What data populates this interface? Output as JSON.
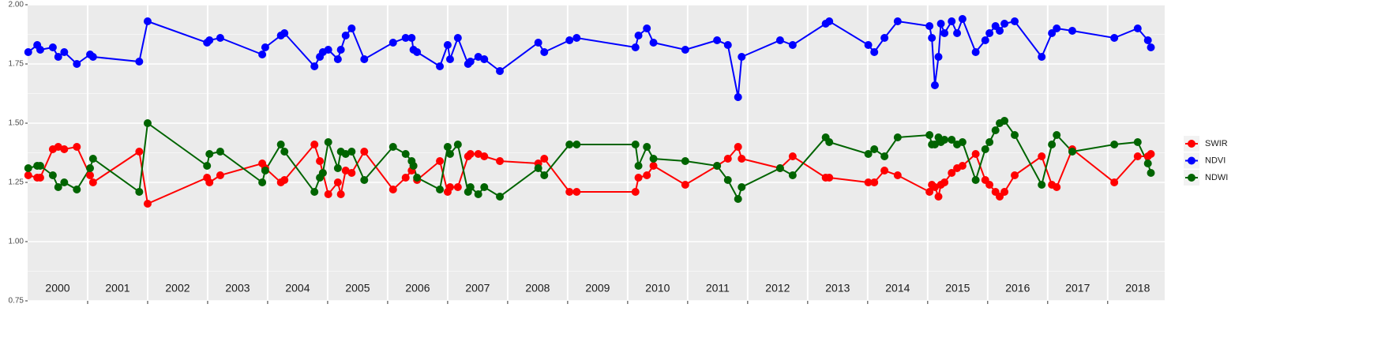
{
  "chart_data": {
    "type": "line",
    "x": [
      2000.01,
      2000.16,
      2000.21,
      2000.42,
      2000.51,
      2000.61,
      2000.82,
      2001.04,
      2001.09,
      2001.86,
      2002.0,
      2002.99,
      2003.03,
      2003.21,
      2003.91,
      2003.96,
      2004.22,
      2004.28,
      2004.78,
      2004.87,
      2004.92,
      2005.01,
      2005.17,
      2005.22,
      2005.3,
      2005.4,
      2005.61,
      2006.09,
      2006.3,
      2006.4,
      2006.43,
      2006.49,
      2006.87,
      2007.0,
      2007.04,
      2007.17,
      2007.34,
      2007.38,
      2007.51,
      2007.61,
      2007.87,
      2008.51,
      2008.61,
      2009.03,
      2009.15,
      2010.13,
      2010.18,
      2010.32,
      2010.43,
      2010.96,
      2011.49,
      2011.67,
      2011.84,
      2011.9,
      2012.54,
      2012.75,
      2013.3,
      2013.36,
      2014.01,
      2014.11,
      2014.28,
      2014.5,
      2015.03,
      2015.07,
      2015.12,
      2015.18,
      2015.22,
      2015.28,
      2015.4,
      2015.49,
      2015.58,
      2015.8,
      2015.96,
      2016.03,
      2016.13,
      2016.2,
      2016.28,
      2016.45,
      2016.9,
      2017.07,
      2017.15,
      2017.41,
      2018.11,
      2018.5,
      2018.67,
      2018.72
    ],
    "series": [
      {
        "name": "SWIR",
        "color": "#ff0000",
        "values": [
          1.28,
          1.27,
          1.27,
          1.39,
          1.4,
          1.39,
          1.4,
          1.28,
          1.25,
          1.38,
          1.16,
          1.27,
          1.25,
          1.28,
          1.33,
          1.31,
          1.25,
          1.26,
          1.41,
          1.34,
          1.29,
          1.2,
          1.25,
          1.2,
          1.3,
          1.29,
          1.38,
          1.22,
          1.27,
          1.3,
          1.32,
          1.26,
          1.34,
          1.21,
          1.23,
          1.23,
          1.36,
          1.37,
          1.37,
          1.36,
          1.34,
          1.33,
          1.35,
          1.21,
          1.21,
          1.21,
          1.27,
          1.28,
          1.32,
          1.24,
          1.32,
          1.35,
          1.4,
          1.35,
          1.31,
          1.36,
          1.27,
          1.27,
          1.25,
          1.25,
          1.3,
          1.28,
          1.21,
          1.24,
          1.23,
          1.19,
          1.24,
          1.25,
          1.29,
          1.31,
          1.32,
          1.37,
          1.26,
          1.24,
          1.21,
          1.19,
          1.21,
          1.28,
          1.36,
          1.24,
          1.23,
          1.39,
          1.25,
          1.36,
          1.36,
          1.37
        ]
      },
      {
        "name": "NDVI",
        "color": "#0000ff",
        "values": [
          1.8,
          1.83,
          1.81,
          1.82,
          1.78,
          1.8,
          1.75,
          1.79,
          1.78,
          1.76,
          1.93,
          1.84,
          1.85,
          1.86,
          1.79,
          1.82,
          1.87,
          1.88,
          1.74,
          1.78,
          1.8,
          1.81,
          1.77,
          1.81,
          1.87,
          1.9,
          1.77,
          1.84,
          1.86,
          1.86,
          1.81,
          1.8,
          1.74,
          1.83,
          1.77,
          1.86,
          1.75,
          1.76,
          1.78,
          1.77,
          1.72,
          1.84,
          1.8,
          1.85,
          1.86,
          1.82,
          1.87,
          1.9,
          1.84,
          1.81,
          1.85,
          1.83,
          1.61,
          1.78,
          1.85,
          1.83,
          1.92,
          1.93,
          1.83,
          1.8,
          1.86,
          1.93,
          1.91,
          1.86,
          1.66,
          1.78,
          1.92,
          1.88,
          1.93,
          1.88,
          1.94,
          1.8,
          1.85,
          1.88,
          1.91,
          1.89,
          1.92,
          1.93,
          1.78,
          1.88,
          1.9,
          1.89,
          1.86,
          1.9,
          1.85,
          1.82
        ]
      },
      {
        "name": "NDWI",
        "color": "#006400",
        "values": [
          1.31,
          1.32,
          1.32,
          1.28,
          1.23,
          1.25,
          1.22,
          1.31,
          1.35,
          1.21,
          1.5,
          1.32,
          1.37,
          1.38,
          1.25,
          1.3,
          1.41,
          1.38,
          1.21,
          1.27,
          1.29,
          1.42,
          1.31,
          1.38,
          1.37,
          1.38,
          1.26,
          1.4,
          1.37,
          1.34,
          1.32,
          1.27,
          1.22,
          1.4,
          1.37,
          1.41,
          1.21,
          1.23,
          1.2,
          1.23,
          1.19,
          1.31,
          1.28,
          1.41,
          1.41,
          1.41,
          1.32,
          1.4,
          1.35,
          1.34,
          1.32,
          1.26,
          1.18,
          1.23,
          1.31,
          1.28,
          1.44,
          1.42,
          1.37,
          1.39,
          1.36,
          1.44,
          1.45,
          1.41,
          1.41,
          1.44,
          1.42,
          1.43,
          1.43,
          1.41,
          1.42,
          1.26,
          1.39,
          1.42,
          1.47,
          1.5,
          1.51,
          1.45,
          1.24,
          1.41,
          1.45,
          1.38,
          1.41,
          1.42,
          1.33,
          1.29
        ]
      }
    ],
    "xlim": [
      2000,
      2018.95
    ],
    "xticks": [
      2001,
      2002,
      2003,
      2004,
      2005,
      2006,
      2007,
      2008,
      2009,
      2010,
      2011,
      2012,
      2013,
      2014,
      2015,
      2016,
      2017,
      2018
    ],
    "year_labels": [
      "2000",
      "2001",
      "2002",
      "2003",
      "2004",
      "2005",
      "2006",
      "2007",
      "2008",
      "2009",
      "2010",
      "2011",
      "2012",
      "2013",
      "2014",
      "2015",
      "2016",
      "2017",
      "2018"
    ],
    "ylim": [
      0.75,
      2.0
    ],
    "yticks": [
      {
        "value": 0.75,
        "label": "0.75"
      },
      {
        "value": 1.0,
        "label": "1.00"
      },
      {
        "value": 1.25,
        "label": "1.25"
      },
      {
        "value": 1.5,
        "label": "1.50"
      },
      {
        "value": 1.75,
        "label": "1.75"
      },
      {
        "value": 2.0,
        "label": "2.00"
      }
    ],
    "yminor": [
      0.875,
      1.125,
      1.375,
      1.625,
      1.875
    ],
    "grid": true,
    "legend": "right"
  }
}
